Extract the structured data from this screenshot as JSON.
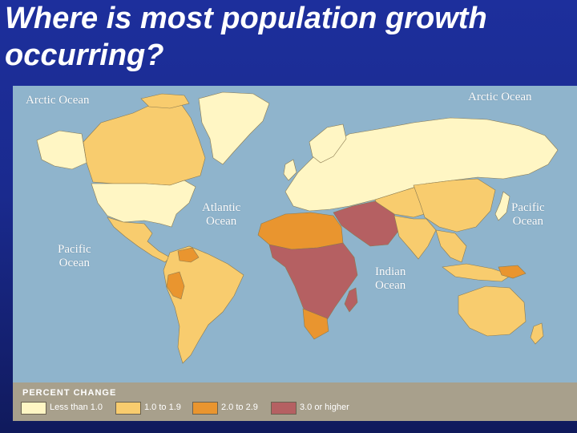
{
  "title": "Where is most population growth occurring?",
  "map": {
    "ocean_labels": {
      "arctic_left": "Arctic Ocean",
      "arctic_right": "Arctic Ocean",
      "atlantic": [
        "Atlantic",
        "Ocean"
      ],
      "pacific_left": [
        "Pacific",
        "Ocean"
      ],
      "pacific_right": [
        "Pacific",
        "Ocean"
      ],
      "indian": [
        "Indian",
        "Ocean"
      ]
    },
    "colors": {
      "ocean": "#8fb4cc",
      "less_than_1": "#fff6c4",
      "1_to_1_9": "#f8cc6e",
      "2_to_2_9": "#e9952f",
      "3_or_higher": "#b56062"
    }
  },
  "legend": {
    "title": "PERCENT CHANGE",
    "items": [
      {
        "label": "Less than 1.0",
        "color": "#fff6c4"
      },
      {
        "label": "1.0 to 1.9",
        "color": "#f8cc6e"
      },
      {
        "label": "2.0 to 2.9",
        "color": "#e9952f"
      },
      {
        "label": "3.0 or higher",
        "color": "#b56062"
      }
    ]
  }
}
